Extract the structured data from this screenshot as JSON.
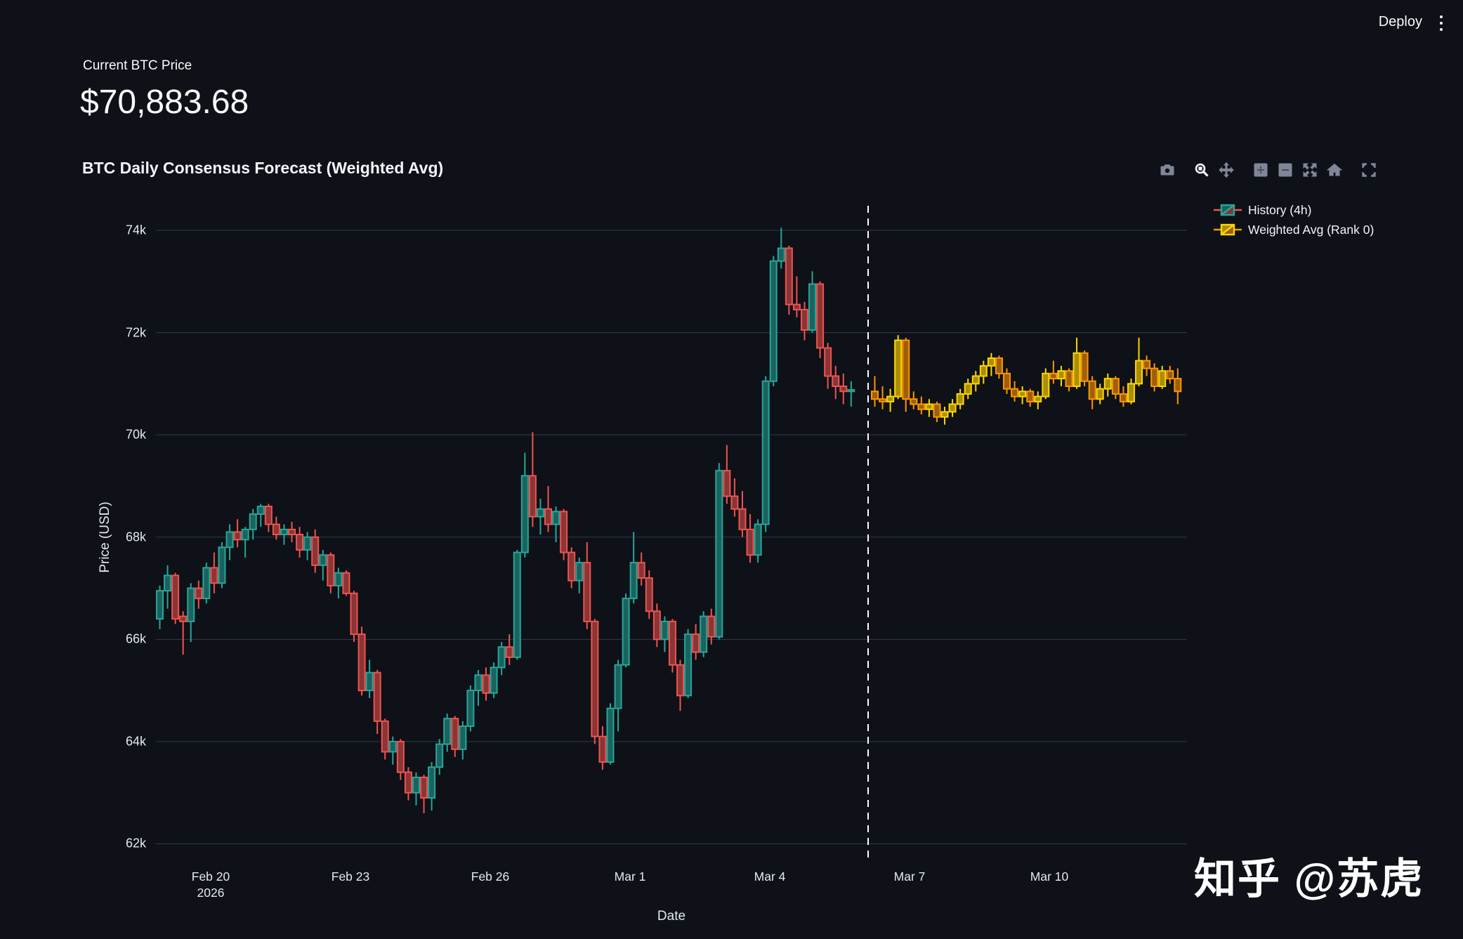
{
  "header": {
    "deploy_label": "Deploy",
    "menu_icon": "kebab-menu-icon"
  },
  "metric": {
    "label": "Current BTC Price",
    "value": "$70,883.68"
  },
  "chart": {
    "title": "BTC Daily Consensus Forecast (Weighted Avg)",
    "xlabel": "Date",
    "ylabel": "Price (USD)",
    "legend": [
      {
        "label": "History (4h)"
      },
      {
        "label": "Weighted Avg (Rank 0)"
      }
    ],
    "modebar": [
      "camera",
      "zoom",
      "pan",
      "zoom-in",
      "zoom-out",
      "autoscale",
      "home",
      "fullscreen"
    ],
    "y_ticks": [
      {
        "label": "74k",
        "value": 74000
      },
      {
        "label": "72k",
        "value": 72000
      },
      {
        "label": "70k",
        "value": 70000
      },
      {
        "label": "68k",
        "value": 68000
      },
      {
        "label": "66k",
        "value": 66000
      },
      {
        "label": "64k",
        "value": 64000
      },
      {
        "label": "62k",
        "value": 62000
      }
    ],
    "x_ticks": [
      {
        "label": "Feb 20",
        "sub": "2026"
      },
      {
        "label": "Feb 23",
        "sub": ""
      },
      {
        "label": "Feb 26",
        "sub": ""
      },
      {
        "label": "Mar 1",
        "sub": ""
      },
      {
        "label": "Mar 4",
        "sub": ""
      },
      {
        "label": "Mar 7",
        "sub": ""
      },
      {
        "label": "Mar 10",
        "sub": ""
      }
    ],
    "colors": {
      "background": "#0e1117",
      "grid": "#323948",
      "divider": "#ffffff",
      "history_up_line": "#26a69a",
      "history_up_fill": "#1b635f",
      "history_down_line": "#ef5350",
      "history_down_fill": "#8a3536",
      "forecast_up_line": "#ffd700",
      "forecast_up_fill": "#ab8e08",
      "forecast_down_line": "#ff9500",
      "forecast_down_fill": "#9c600b"
    }
  },
  "chart_data": {
    "type": "candlestick",
    "title": "BTC Daily Consensus Forecast (Weighted Avg)",
    "xlabel": "Date",
    "ylabel": "Price (USD)",
    "ylim": [
      61800,
      74600
    ],
    "price_unit": "USD",
    "grid": true,
    "legend_position": "top-right",
    "divider_date": "2026-03-06 02:00",
    "series": [
      {
        "name": "History (4h)",
        "start": "2026-02-19 00:00",
        "interval_hours": 4,
        "ohlc": [
          [
            66400,
            67050,
            66200,
            66950
          ],
          [
            66950,
            67450,
            66600,
            67250
          ],
          [
            67250,
            67300,
            66300,
            66400
          ],
          [
            66450,
            66550,
            65700,
            66350
          ],
          [
            66350,
            67100,
            65950,
            67000
          ],
          [
            67000,
            67150,
            66600,
            66800
          ],
          [
            66800,
            67500,
            66700,
            67400
          ],
          [
            67400,
            67700,
            66900,
            67100
          ],
          [
            67100,
            67900,
            67000,
            67800
          ],
          [
            67800,
            68250,
            67550,
            68100
          ],
          [
            68100,
            68350,
            67800,
            67950
          ],
          [
            67950,
            68200,
            67600,
            68150
          ],
          [
            68150,
            68550,
            67950,
            68450
          ],
          [
            68450,
            68650,
            68200,
            68600
          ],
          [
            68600,
            68650,
            68100,
            68250
          ],
          [
            68250,
            68400,
            67950,
            68050
          ],
          [
            68050,
            68250,
            67850,
            68150
          ],
          [
            68150,
            68300,
            67900,
            68050
          ],
          [
            68050,
            68200,
            67600,
            67750
          ],
          [
            67750,
            68100,
            67550,
            68000
          ],
          [
            68000,
            68150,
            67300,
            67450
          ],
          [
            67450,
            67750,
            67150,
            67650
          ],
          [
            67650,
            67700,
            66900,
            67050
          ],
          [
            67050,
            67400,
            66800,
            67300
          ],
          [
            67300,
            67350,
            66850,
            66900
          ],
          [
            66900,
            66950,
            65950,
            66100
          ],
          [
            66100,
            66250,
            64900,
            65000
          ],
          [
            65000,
            65600,
            64850,
            65350
          ],
          [
            65350,
            65400,
            64150,
            64400
          ],
          [
            64400,
            64450,
            63650,
            63800
          ],
          [
            63800,
            64100,
            63550,
            64000
          ],
          [
            64000,
            64050,
            63250,
            63400
          ],
          [
            63400,
            63500,
            62850,
            63000
          ],
          [
            63000,
            63400,
            62750,
            63300
          ],
          [
            63300,
            63350,
            62600,
            62900
          ],
          [
            62900,
            63600,
            62650,
            63500
          ],
          [
            63500,
            64050,
            63350,
            63950
          ],
          [
            63950,
            64550,
            63800,
            64450
          ],
          [
            64450,
            64500,
            63700,
            63850
          ],
          [
            63850,
            64400,
            63650,
            64300
          ],
          [
            64300,
            65100,
            64200,
            65000
          ],
          [
            65000,
            65400,
            64700,
            65300
          ],
          [
            65300,
            65450,
            64800,
            64950
          ],
          [
            64950,
            65550,
            64850,
            65450
          ],
          [
            65450,
            65950,
            65300,
            65850
          ],
          [
            65850,
            66100,
            65500,
            65650
          ],
          [
            65650,
            67750,
            65600,
            67700
          ],
          [
            67700,
            69650,
            67600,
            69200
          ],
          [
            69200,
            70050,
            68200,
            68400
          ],
          [
            68400,
            68750,
            68050,
            68550
          ],
          [
            68550,
            69000,
            68100,
            68250
          ],
          [
            68250,
            68600,
            67900,
            68500
          ],
          [
            68500,
            68550,
            67550,
            67700
          ],
          [
            67700,
            67800,
            67000,
            67150
          ],
          [
            67150,
            67600,
            66900,
            67500
          ],
          [
            67500,
            67900,
            66200,
            66350
          ],
          [
            66350,
            66400,
            63950,
            64100
          ],
          [
            64100,
            64300,
            63450,
            63600
          ],
          [
            63600,
            64750,
            63550,
            64650
          ],
          [
            64650,
            65600,
            64200,
            65500
          ],
          [
            65500,
            66900,
            65450,
            66800
          ],
          [
            66800,
            68100,
            66700,
            67500
          ],
          [
            67500,
            67700,
            67050,
            67200
          ],
          [
            67200,
            67350,
            66400,
            66550
          ],
          [
            66550,
            66700,
            65850,
            66000
          ],
          [
            66000,
            66450,
            65750,
            66350
          ],
          [
            66350,
            66400,
            65350,
            65500
          ],
          [
            65500,
            65600,
            64600,
            64900
          ],
          [
            64900,
            66200,
            64850,
            66100
          ],
          [
            66100,
            66300,
            65600,
            65750
          ],
          [
            65750,
            66550,
            65650,
            66450
          ],
          [
            66450,
            66600,
            65900,
            66050
          ],
          [
            66050,
            69450,
            66000,
            69300
          ],
          [
            69300,
            69800,
            68650,
            68800
          ],
          [
            68800,
            69150,
            68400,
            68550
          ],
          [
            68550,
            68900,
            68000,
            68150
          ],
          [
            68150,
            68450,
            67500,
            67650
          ],
          [
            67650,
            68350,
            67500,
            68250
          ],
          [
            68250,
            71150,
            68100,
            71050
          ],
          [
            71050,
            73500,
            70950,
            73400
          ],
          [
            73400,
            74050,
            73250,
            73650
          ],
          [
            73650,
            73700,
            72350,
            72550
          ],
          [
            72550,
            73100,
            72300,
            72450
          ],
          [
            72450,
            72600,
            71850,
            72050
          ],
          [
            72050,
            73200,
            72000,
            72950
          ],
          [
            72950,
            73000,
            71500,
            71700
          ],
          [
            71700,
            71800,
            70900,
            71150
          ],
          [
            71150,
            71350,
            70700,
            70950
          ],
          [
            70950,
            71200,
            70600,
            70850
          ],
          [
            70850,
            71050,
            70550,
            70880
          ]
        ]
      },
      {
        "name": "Weighted Avg (Rank 0)",
        "start": "2026-03-06 04:00",
        "interval_hours": 4,
        "ohlc": [
          [
            70850,
            71150,
            70550,
            70700
          ],
          [
            70700,
            70950,
            70500,
            70650
          ],
          [
            70650,
            70900,
            70450,
            70750
          ],
          [
            70750,
            71950,
            70700,
            71850
          ],
          [
            71850,
            71900,
            70450,
            70700
          ],
          [
            70700,
            70850,
            70500,
            70600
          ],
          [
            70600,
            70750,
            70400,
            70500
          ],
          [
            70500,
            70700,
            70350,
            70600
          ],
          [
            70600,
            70650,
            70250,
            70350
          ],
          [
            70350,
            70550,
            70200,
            70450
          ],
          [
            70450,
            70700,
            70350,
            70600
          ],
          [
            70600,
            70900,
            70500,
            70800
          ],
          [
            70800,
            71100,
            70700,
            71000
          ],
          [
            71000,
            71250,
            70850,
            71150
          ],
          [
            71150,
            71450,
            71000,
            71350
          ],
          [
            71350,
            71600,
            71150,
            71500
          ],
          [
            71500,
            71550,
            71100,
            71200
          ],
          [
            71200,
            71300,
            70800,
            70900
          ],
          [
            70900,
            71050,
            70650,
            70750
          ],
          [
            70750,
            70950,
            70600,
            70850
          ],
          [
            70850,
            70900,
            70550,
            70650
          ],
          [
            70650,
            70850,
            70500,
            70750
          ],
          [
            70750,
            71300,
            70700,
            71200
          ],
          [
            71200,
            71450,
            71000,
            71100
          ],
          [
            71100,
            71350,
            70950,
            71250
          ],
          [
            71250,
            71300,
            70850,
            70950
          ],
          [
            70950,
            71900,
            70900,
            71600
          ],
          [
            71600,
            71650,
            70950,
            71050
          ],
          [
            71050,
            71150,
            70500,
            70700
          ],
          [
            70700,
            71000,
            70600,
            70900
          ],
          [
            70900,
            71200,
            70750,
            71100
          ],
          [
            71100,
            71150,
            70700,
            70800
          ],
          [
            70800,
            70950,
            70550,
            70650
          ],
          [
            70650,
            71100,
            70600,
            71000
          ],
          [
            71000,
            71900,
            70950,
            71450
          ],
          [
            71450,
            71550,
            71150,
            71300
          ],
          [
            71300,
            71400,
            70850,
            70950
          ],
          [
            70950,
            71350,
            70900,
            71250
          ],
          [
            71250,
            71350,
            71000,
            71100
          ],
          [
            71100,
            71300,
            70600,
            70850
          ]
        ]
      }
    ]
  },
  "watermark": "知乎 @苏虎"
}
